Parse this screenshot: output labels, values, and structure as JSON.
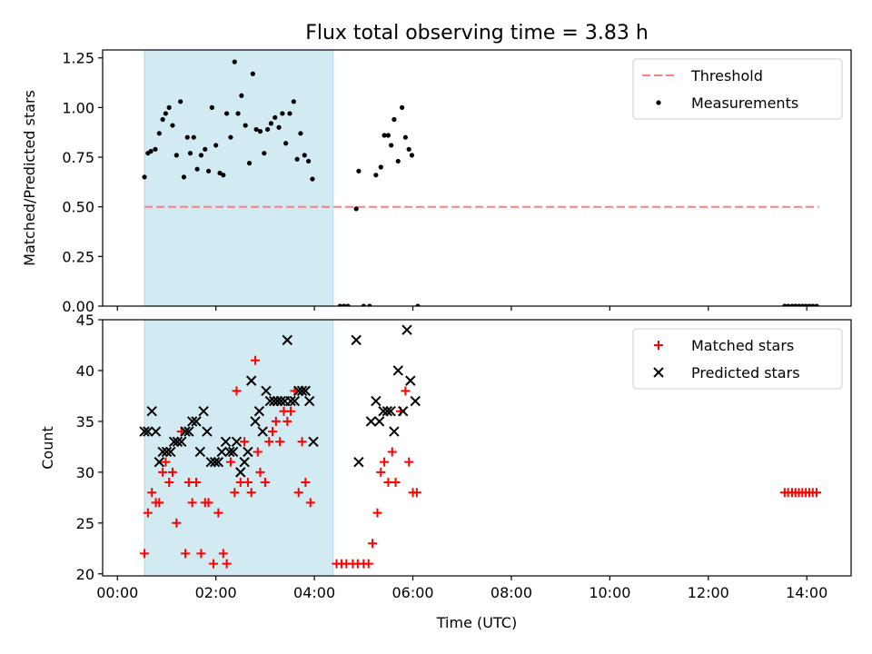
{
  "title": "Flux total observing time = 3.83 h",
  "colors": {
    "threshold": "#ff7f7f",
    "measurement": "#000000",
    "matched": "#ff0000",
    "predicted": "#000000",
    "span": "#add8e6"
  },
  "chart_data": [
    {
      "type": "scatter",
      "title": "Flux total observing time = 3.83 h",
      "xlabel": "",
      "ylabel": "Matched/Predicted stars",
      "xlim": [
        -0.3,
        14.9
      ],
      "ylim": [
        0,
        1.29
      ],
      "yticks": [
        0.0,
        0.25,
        0.5,
        0.75,
        1.0,
        1.25
      ],
      "ytick_labels": [
        "0.00",
        "0.25",
        "0.50",
        "0.75",
        "1.00",
        "1.25"
      ],
      "xticks": [
        0,
        2,
        4,
        6,
        8,
        10,
        12,
        14
      ],
      "grid": false,
      "legend": "top-right",
      "shaded_span": [
        0.55,
        4.38
      ],
      "series": [
        {
          "name": "Threshold",
          "kind": "line",
          "style": "dashed",
          "x": [
            0.55,
            14.25
          ],
          "y": [
            0.5,
            0.5
          ]
        },
        {
          "name": "Measurements",
          "kind": "scatter",
          "marker": "dot",
          "points": [
            [
              0.55,
              0.65
            ],
            [
              0.62,
              0.77
            ],
            [
              0.68,
              0.78
            ],
            [
              0.77,
              0.79
            ],
            [
              0.85,
              0.87
            ],
            [
              0.92,
              0.94
            ],
            [
              0.98,
              0.97
            ],
            [
              1.05,
              1.0
            ],
            [
              1.12,
              0.91
            ],
            [
              1.2,
              0.76
            ],
            [
              1.28,
              1.03
            ],
            [
              1.35,
              0.65
            ],
            [
              1.42,
              0.85
            ],
            [
              1.48,
              0.77
            ],
            [
              1.55,
              0.85
            ],
            [
              1.62,
              0.69
            ],
            [
              1.7,
              0.76
            ],
            [
              1.78,
              0.79
            ],
            [
              1.85,
              0.68
            ],
            [
              1.92,
              1.0
            ],
            [
              2.0,
              0.81
            ],
            [
              2.08,
              0.67
            ],
            [
              2.15,
              0.66
            ],
            [
              2.22,
              0.97
            ],
            [
              2.3,
              0.85
            ],
            [
              2.38,
              1.23
            ],
            [
              2.45,
              0.97
            ],
            [
              2.52,
              1.06
            ],
            [
              2.6,
              0.91
            ],
            [
              2.68,
              0.72
            ],
            [
              2.75,
              1.17
            ],
            [
              2.82,
              0.89
            ],
            [
              2.9,
              0.88
            ],
            [
              2.98,
              0.77
            ],
            [
              3.05,
              0.89
            ],
            [
              3.12,
              0.92
            ],
            [
              3.2,
              0.95
            ],
            [
              3.28,
              0.9
            ],
            [
              3.35,
              0.97
            ],
            [
              3.42,
              0.82
            ],
            [
              3.5,
              0.97
            ],
            [
              3.58,
              1.03
            ],
            [
              3.65,
              0.74
            ],
            [
              3.72,
              0.87
            ],
            [
              3.8,
              0.76
            ],
            [
              3.88,
              0.73
            ],
            [
              3.96,
              0.64
            ],
            [
              4.52,
              0.0
            ],
            [
              4.6,
              0.0
            ],
            [
              4.68,
              0.0
            ],
            [
              4.85,
              0.49
            ],
            [
              4.9,
              0.68
            ],
            [
              5.0,
              0.0
            ],
            [
              5.12,
              0.0
            ],
            [
              5.25,
              0.66
            ],
            [
              5.35,
              0.7
            ],
            [
              5.42,
              0.86
            ],
            [
              5.5,
              0.86
            ],
            [
              5.56,
              0.81
            ],
            [
              5.62,
              0.94
            ],
            [
              5.7,
              0.73
            ],
            [
              5.78,
              1.0
            ],
            [
              5.85,
              0.85
            ],
            [
              5.92,
              0.79
            ],
            [
              5.98,
              0.76
            ],
            [
              6.1,
              0.0
            ],
            [
              13.55,
              0.0
            ],
            [
              13.62,
              0.0
            ],
            [
              13.7,
              0.0
            ],
            [
              13.77,
              0.0
            ],
            [
              13.84,
              0.0
            ],
            [
              13.91,
              0.0
            ],
            [
              13.98,
              0.0
            ],
            [
              14.05,
              0.0
            ],
            [
              14.12,
              0.0
            ],
            [
              14.2,
              0.0
            ]
          ]
        }
      ]
    },
    {
      "type": "scatter",
      "xlabel": "Time (UTC)",
      "ylabel": "Count",
      "xlim": [
        -0.3,
        14.9
      ],
      "ylim": [
        19.8,
        45
      ],
      "yticks": [
        20,
        25,
        30,
        35,
        40,
        45
      ],
      "xticks": [
        0,
        2,
        4,
        6,
        8,
        10,
        12,
        14
      ],
      "xtick_labels": [
        "00:00",
        "02:00",
        "04:00",
        "06:00",
        "08:00",
        "10:00",
        "12:00",
        "14:00"
      ],
      "grid": false,
      "legend": "top-right",
      "shaded_span": [
        0.55,
        4.38
      ],
      "series": [
        {
          "name": "Matched stars",
          "kind": "scatter",
          "marker": "plus",
          "points": [
            [
              0.55,
              22
            ],
            [
              0.62,
              26
            ],
            [
              0.7,
              28
            ],
            [
              0.78,
              27
            ],
            [
              0.85,
              27
            ],
            [
              0.92,
              30
            ],
            [
              0.98,
              31
            ],
            [
              1.05,
              29
            ],
            [
              1.12,
              30
            ],
            [
              1.2,
              25
            ],
            [
              1.3,
              34
            ],
            [
              1.38,
              22
            ],
            [
              1.45,
              29
            ],
            [
              1.52,
              27
            ],
            [
              1.6,
              29
            ],
            [
              1.7,
              22
            ],
            [
              1.78,
              27
            ],
            [
              1.85,
              27
            ],
            [
              1.95,
              21
            ],
            [
              2.05,
              26
            ],
            [
              2.15,
              22
            ],
            [
              2.22,
              21
            ],
            [
              2.3,
              31
            ],
            [
              2.38,
              28
            ],
            [
              2.42,
              38
            ],
            [
              2.5,
              29
            ],
            [
              2.58,
              33
            ],
            [
              2.65,
              29
            ],
            [
              2.72,
              28
            ],
            [
              2.8,
              41
            ],
            [
              2.85,
              32
            ],
            [
              2.9,
              30
            ],
            [
              3.0,
              29
            ],
            [
              3.08,
              33
            ],
            [
              3.15,
              34
            ],
            [
              3.22,
              35
            ],
            [
              3.3,
              33
            ],
            [
              3.38,
              36
            ],
            [
              3.45,
              35
            ],
            [
              3.52,
              36
            ],
            [
              3.6,
              38
            ],
            [
              3.68,
              28
            ],
            [
              3.75,
              33
            ],
            [
              3.82,
              29
            ],
            [
              3.92,
              27
            ],
            [
              4.45,
              21
            ],
            [
              4.55,
              21
            ],
            [
              4.65,
              21
            ],
            [
              4.78,
              21
            ],
            [
              4.88,
              21
            ],
            [
              5.0,
              21
            ],
            [
              5.1,
              21
            ],
            [
              5.18,
              23
            ],
            [
              5.28,
              26
            ],
            [
              5.35,
              30
            ],
            [
              5.42,
              31
            ],
            [
              5.5,
              29
            ],
            [
              5.58,
              32
            ],
            [
              5.65,
              29
            ],
            [
              5.75,
              36
            ],
            [
              5.85,
              38
            ],
            [
              5.92,
              31
            ],
            [
              6.0,
              28
            ],
            [
              6.08,
              28
            ],
            [
              13.55,
              28
            ],
            [
              13.62,
              28
            ],
            [
              13.7,
              28
            ],
            [
              13.77,
              28
            ],
            [
              13.84,
              28
            ],
            [
              13.91,
              28
            ],
            [
              13.98,
              28
            ],
            [
              14.05,
              28
            ],
            [
              14.12,
              28
            ],
            [
              14.2,
              28
            ]
          ]
        },
        {
          "name": "Predicted stars",
          "kind": "scatter",
          "marker": "x",
          "points": [
            [
              0.55,
              34
            ],
            [
              0.62,
              34
            ],
            [
              0.7,
              36
            ],
            [
              0.78,
              34
            ],
            [
              0.85,
              31
            ],
            [
              0.92,
              32
            ],
            [
              1.0,
              32
            ],
            [
              1.08,
              32
            ],
            [
              1.15,
              33
            ],
            [
              1.22,
              33
            ],
            [
              1.3,
              33
            ],
            [
              1.38,
              34
            ],
            [
              1.45,
              34
            ],
            [
              1.52,
              35
            ],
            [
              1.6,
              35
            ],
            [
              1.68,
              32
            ],
            [
              1.75,
              36
            ],
            [
              1.82,
              34
            ],
            [
              1.9,
              31
            ],
            [
              1.98,
              31
            ],
            [
              2.05,
              31
            ],
            [
              2.12,
              32
            ],
            [
              2.2,
              33
            ],
            [
              2.28,
              32
            ],
            [
              2.35,
              32
            ],
            [
              2.42,
              33
            ],
            [
              2.5,
              30
            ],
            [
              2.58,
              31
            ],
            [
              2.65,
              32
            ],
            [
              2.72,
              39
            ],
            [
              2.8,
              35
            ],
            [
              2.88,
              36
            ],
            [
              2.95,
              34
            ],
            [
              3.02,
              38
            ],
            [
              3.1,
              37
            ],
            [
              3.18,
              37
            ],
            [
              3.25,
              37
            ],
            [
              3.32,
              37
            ],
            [
              3.4,
              37
            ],
            [
              3.45,
              43
            ],
            [
              3.52,
              37
            ],
            [
              3.6,
              37
            ],
            [
              3.68,
              38
            ],
            [
              3.75,
              38
            ],
            [
              3.82,
              38
            ],
            [
              3.9,
              37
            ],
            [
              3.98,
              33
            ],
            [
              4.85,
              43
            ],
            [
              4.9,
              31
            ],
            [
              5.15,
              35
            ],
            [
              5.25,
              37
            ],
            [
              5.32,
              35
            ],
            [
              5.4,
              36
            ],
            [
              5.48,
              36
            ],
            [
              5.55,
              36
            ],
            [
              5.62,
              34
            ],
            [
              5.7,
              40
            ],
            [
              5.8,
              36
            ],
            [
              5.88,
              44
            ],
            [
              5.95,
              39
            ],
            [
              6.05,
              37
            ]
          ]
        }
      ]
    }
  ]
}
